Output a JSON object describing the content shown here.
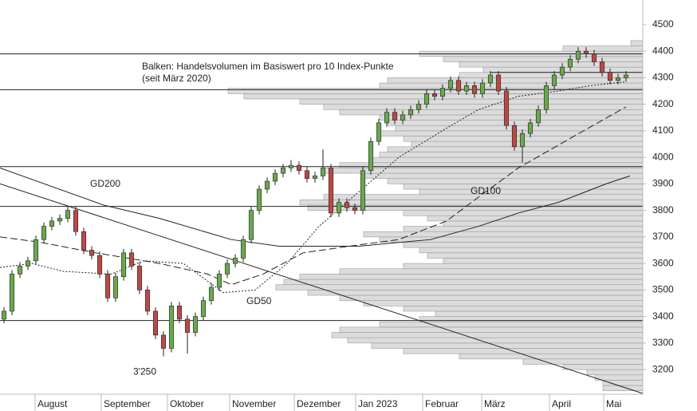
{
  "chart_data": {
    "type": "candlestick",
    "annotations": [
      "Balken: Handelsvolumen im Basiswert pro 10 Index-Punkte",
      "(seit März 2020)"
    ],
    "low_annotation": {
      "value": 3250,
      "label": "3'250"
    },
    "x": [
      0,
      1,
      2,
      3,
      4,
      5,
      6,
      7,
      8,
      9,
      10,
      11,
      12,
      13,
      14,
      15,
      16,
      17,
      18,
      19,
      20,
      21,
      22,
      23,
      24,
      25,
      26,
      27,
      28,
      29,
      30,
      31,
      32,
      33,
      34,
      35,
      36,
      37,
      38,
      39,
      40,
      41,
      42,
      43,
      44,
      45,
      46,
      47,
      48,
      49,
      50,
      51,
      52,
      53,
      54,
      55,
      56,
      57,
      58,
      59,
      60,
      61,
      62,
      63,
      64,
      65,
      66,
      67,
      68,
      69,
      70,
      71,
      72,
      73,
      74,
      75,
      76,
      77,
      78
    ],
    "open": [
      3390,
      3420,
      3560,
      3590,
      3610,
      3690,
      3740,
      3760,
      3770,
      3800,
      3720,
      3650,
      3630,
      3560,
      3470,
      3550,
      3640,
      3590,
      3500,
      3420,
      3330,
      3280,
      3440,
      3390,
      3340,
      3400,
      3460,
      3510,
      3560,
      3600,
      3620,
      3690,
      3800,
      3880,
      3910,
      3940,
      3960,
      3970,
      3950,
      3920,
      3930,
      3960,
      3790,
      3830,
      3810,
      3800,
      3950,
      4060,
      4130,
      4170,
      4140,
      4160,
      4180,
      4200,
      4240,
      4230,
      4260,
      4290,
      4250,
      4270,
      4240,
      4280,
      4310,
      4250,
      4120,
      4040,
      4090,
      4130,
      4180,
      4270,
      4310,
      4340,
      4370,
      4400,
      4390,
      4360,
      4320,
      4290,
      4300
    ],
    "high": [
      3435,
      3575,
      3605,
      3625,
      3705,
      3755,
      3775,
      3785,
      3815,
      3815,
      3735,
      3665,
      3645,
      3575,
      3565,
      3655,
      3655,
      3605,
      3515,
      3435,
      3345,
      3455,
      3455,
      3405,
      3415,
      3475,
      3525,
      3575,
      3615,
      3635,
      3705,
      3815,
      3895,
      3925,
      3955,
      3975,
      3990,
      3985,
      3965,
      3945,
      4030,
      3975,
      3845,
      3845,
      3825,
      3965,
      4075,
      4145,
      4185,
      4185,
      4175,
      4195,
      4215,
      4255,
      4255,
      4275,
      4305,
      4305,
      4285,
      4285,
      4295,
      4325,
      4325,
      4265,
      4135,
      4105,
      4145,
      4195,
      4285,
      4325,
      4355,
      4385,
      4415,
      4415,
      4405,
      4375,
      4335,
      4315,
      4325
    ],
    "low": [
      3375,
      3405,
      3545,
      3575,
      3595,
      3675,
      3725,
      3745,
      3755,
      3705,
      3635,
      3615,
      3545,
      3455,
      3455,
      3535,
      3575,
      3485,
      3405,
      3315,
      3250,
      3265,
      3375,
      3260,
      3325,
      3385,
      3445,
      3495,
      3545,
      3585,
      3605,
      3675,
      3785,
      3865,
      3895,
      3925,
      3945,
      3935,
      3905,
      3905,
      3915,
      3775,
      3775,
      3795,
      3785,
      3785,
      3935,
      4045,
      4115,
      4125,
      4125,
      4145,
      4165,
      4185,
      4215,
      4215,
      4245,
      4235,
      4235,
      4225,
      4225,
      4265,
      4235,
      4105,
      4025,
      3980,
      4075,
      4115,
      4165,
      4255,
      4295,
      4325,
      4355,
      4375,
      4345,
      4305,
      4275,
      4275,
      4285
    ],
    "close": [
      3420,
      3560,
      3590,
      3610,
      3690,
      3740,
      3760,
      3770,
      3800,
      3720,
      3650,
      3630,
      3560,
      3470,
      3550,
      3640,
      3590,
      3500,
      3420,
      3330,
      3280,
      3440,
      3390,
      3340,
      3400,
      3460,
      3510,
      3560,
      3600,
      3620,
      3690,
      3800,
      3880,
      3910,
      3940,
      3960,
      3970,
      3950,
      3920,
      3930,
      3960,
      3790,
      3830,
      3810,
      3800,
      3950,
      4060,
      4130,
      4170,
      4140,
      4160,
      4180,
      4200,
      4240,
      4230,
      4260,
      4290,
      4250,
      4270,
      4240,
      4280,
      4310,
      4250,
      4120,
      4040,
      4090,
      4130,
      4180,
      4270,
      4310,
      4340,
      4370,
      4400,
      4390,
      4360,
      4320,
      4290,
      4300,
      4310
    ],
    "up_color": "#6aa84f",
    "down_color": "#b94a48",
    "xlim": [
      -0.5,
      80.1
    ],
    "xticks": [
      {
        "value": 3.9,
        "label": "August"
      },
      {
        "value": 12.2,
        "label": "September"
      },
      {
        "value": 20.5,
        "label": "Oktober"
      },
      {
        "value": 28.3,
        "label": "November"
      },
      {
        "value": 36.4,
        "label": "Dezember"
      },
      {
        "value": 44.1,
        "label": "Jan 2023"
      },
      {
        "value": 52.5,
        "label": "Februar"
      },
      {
        "value": 59.9,
        "label": "März"
      },
      {
        "value": 68.4,
        "label": "April"
      },
      {
        "value": 75.2,
        "label": "Mai"
      }
    ],
    "ylim": [
      3107,
      4593
    ],
    "yticks": [
      3200,
      3300,
      3400,
      3500,
      3600,
      3700,
      3800,
      3900,
      4000,
      4100,
      4200,
      4300,
      4400,
      4500
    ],
    "profile": {
      "color": "#dcdcdc",
      "bins": [
        3120,
        3140,
        3160,
        3180,
        3200,
        3220,
        3240,
        3260,
        3280,
        3300,
        3320,
        3340,
        3360,
        3380,
        3400,
        3420,
        3440,
        3460,
        3480,
        3500,
        3520,
        3540,
        3560,
        3580,
        3600,
        3620,
        3640,
        3660,
        3680,
        3700,
        3720,
        3740,
        3760,
        3780,
        3800,
        3820,
        3840,
        3860,
        3880,
        3900,
        3920,
        3940,
        3960,
        3980,
        4000,
        4020,
        4040,
        4060,
        4080,
        4100,
        4120,
        4140,
        4160,
        4180,
        4200,
        4220,
        4240,
        4260,
        4280,
        4300,
        4320,
        4340,
        4360,
        4380,
        4400,
        4420
      ],
      "values": [
        50,
        50,
        60,
        70,
        100,
        150,
        230,
        300,
        340,
        370,
        390,
        380,
        330,
        280,
        260,
        300,
        350,
        380,
        420,
        460,
        450,
        430,
        380,
        300,
        250,
        270,
        280,
        300,
        330,
        350,
        300,
        250,
        270,
        300,
        420,
        430,
        400,
        280,
        300,
        320,
        350,
        400,
        380,
        340,
        330,
        320,
        290,
        300,
        330,
        310,
        320,
        330,
        380,
        400,
        430,
        500,
        520,
        330,
        320,
        230,
        200,
        230,
        250,
        280,
        100,
        15
      ]
    },
    "series": [
      {
        "name": "GD200",
        "style": "solid",
        "color": "#222",
        "x": [
          -0.5,
          12.5,
          19.5,
          28.5,
          34.5,
          44.5,
          53.5,
          59.5,
          64.5,
          69.5,
          75.5,
          78.5
        ],
        "values": [
          3960,
          3820,
          3770,
          3690,
          3665,
          3665,
          3690,
          3740,
          3790,
          3830,
          3900,
          3930
        ]
      },
      {
        "name": "GD100",
        "style": "dashed",
        "color": "#222",
        "x": [
          -0.5,
          4.5,
          11.5,
          19.5,
          25.5,
          28.5,
          32.5,
          37.5,
          44.5,
          49.5,
          55.5,
          59.5,
          64.5,
          71.5,
          78
        ],
        "values": [
          3700,
          3680,
          3640,
          3600,
          3560,
          3520,
          3560,
          3640,
          3670,
          3690,
          3760,
          3850,
          3960,
          4080,
          4190
        ]
      },
      {
        "name": "GD50",
        "style": "dotted",
        "color": "#222",
        "x": [
          -0.5,
          3.5,
          7.5,
          13.5,
          17.5,
          22.5,
          27.5,
          31.5,
          35.5,
          39.5,
          44.5,
          49.5,
          55.5,
          59.5,
          64.5,
          69.5,
          73.5,
          78
        ],
        "values": [
          3585,
          3600,
          3570,
          3560,
          3610,
          3600,
          3490,
          3500,
          3600,
          3740,
          3870,
          4000,
          4110,
          4180,
          4230,
          4250,
          4270,
          4285
        ]
      }
    ],
    "trendline": {
      "x": [
        -0.5,
        80.1
      ],
      "values": [
        3900,
        3110
      ]
    },
    "hlines": [
      4390,
      4320,
      4255,
      3965,
      3815,
      3385
    ]
  }
}
